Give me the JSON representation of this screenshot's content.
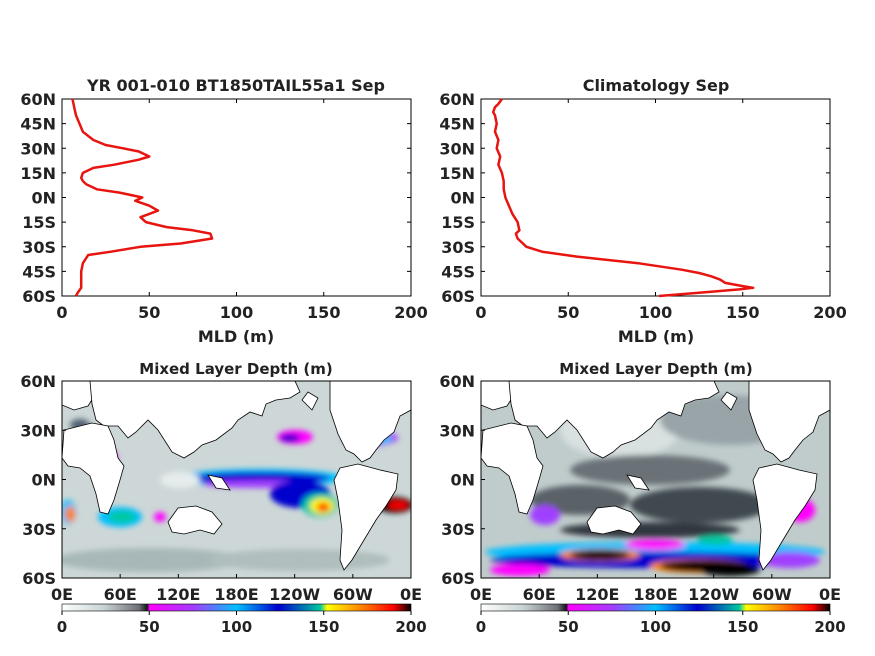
{
  "chart_data": [
    {
      "type": "line",
      "title": "YR 001-010 BT1850TAIL55a1 Sep",
      "xlabel": "MLD (m)",
      "ylabel": "",
      "xlim": [
        0,
        200
      ],
      "ylim": [
        -60,
        60
      ],
      "x_ticks": [
        "0",
        "50",
        "100",
        "150",
        "200"
      ],
      "y_ticks": [
        "60N",
        "45N",
        "30N",
        "15N",
        "0N",
        "15S",
        "30S",
        "45S",
        "60S"
      ],
      "grid": false,
      "color": "#e8140f",
      "series": [
        {
          "lat": [
            60,
            55,
            50,
            45,
            40,
            35,
            32,
            30,
            28,
            25,
            23,
            20,
            18,
            15,
            12,
            10,
            8,
            5,
            3,
            0,
            -2,
            -5,
            -8,
            -10,
            -12,
            -15,
            -18,
            -20,
            -22,
            -25,
            -28,
            -30,
            -33,
            -35,
            -40,
            -45,
            -50,
            -55,
            -58,
            -60
          ],
          "mld": [
            6,
            7,
            8,
            10,
            12,
            18,
            25,
            35,
            44,
            50,
            44,
            30,
            18,
            12,
            11,
            12,
            14,
            20,
            33,
            46,
            42,
            50,
            55,
            50,
            45,
            48,
            60,
            75,
            85,
            86,
            68,
            45,
            28,
            15,
            12,
            11,
            11,
            11,
            9,
            8
          ]
        }
      ]
    },
    {
      "type": "line",
      "title": "Climatology Sep",
      "xlabel": "MLD (m)",
      "ylabel": "",
      "xlim": [
        0,
        200
      ],
      "ylim": [
        -60,
        60
      ],
      "x_ticks": [
        "0",
        "50",
        "100",
        "150",
        "200"
      ],
      "y_ticks": [
        "60N",
        "45N",
        "30N",
        "15N",
        "0N",
        "15S",
        "30S",
        "45S",
        "60S"
      ],
      "grid": false,
      "color": "#e8140f",
      "series": [
        {
          "lat": [
            60,
            57,
            55,
            52,
            50,
            45,
            40,
            35,
            30,
            25,
            20,
            15,
            10,
            5,
            0,
            -5,
            -10,
            -15,
            -20,
            -22,
            -25,
            -28,
            -30,
            -33,
            -36,
            -40,
            -44,
            -46,
            -48,
            -50,
            -52,
            -54,
            -55,
            -56,
            -58,
            -60
          ],
          "mld": [
            12,
            10,
            8,
            7,
            8,
            9,
            8,
            10,
            9,
            11,
            10,
            12,
            13,
            13,
            14,
            16,
            18,
            21,
            22,
            20,
            21,
            24,
            26,
            35,
            55,
            90,
            115,
            125,
            132,
            137,
            140,
            150,
            156,
            148,
            125,
            102
          ]
        }
      ]
    },
    {
      "type": "heatmap",
      "title": "Mixed Layer Depth (m)",
      "x_ticks": [
        "0E",
        "60E",
        "120E",
        "180E",
        "120W",
        "60W",
        "0E"
      ],
      "y_ticks": [
        "60N",
        "30N",
        "0N",
        "30S",
        "60S"
      ],
      "colorbar_ticks": [
        "0",
        "50",
        "100",
        "150",
        "200"
      ],
      "colorbar_range": [
        0,
        200
      ],
      "colorscale": [
        "#ffffff",
        "#c8d4d4",
        "#707078",
        "#101018",
        "#ff00ff",
        "#a040ff",
        "#00bfff",
        "#0000cd",
        "#00c8a0",
        "#ffff00",
        "#ff8000",
        "#ff0000",
        "#000000"
      ]
    },
    {
      "type": "heatmap",
      "title": "Mixed Layer Depth (m)",
      "x_ticks": [
        "0E",
        "60E",
        "120E",
        "180E",
        "120W",
        "60W",
        "0E"
      ],
      "y_ticks": [
        "60N",
        "30N",
        "0N",
        "30S",
        "60S"
      ],
      "colorbar_ticks": [
        "0",
        "50",
        "100",
        "150",
        "200"
      ],
      "colorbar_range": [
        0,
        200
      ],
      "colorscale": [
        "#ffffff",
        "#c8d4d4",
        "#707078",
        "#101018",
        "#ff00ff",
        "#a040ff",
        "#00bfff",
        "#0000cd",
        "#00c8a0",
        "#ffff00",
        "#ff8000",
        "#ff0000",
        "#000000"
      ]
    }
  ]
}
